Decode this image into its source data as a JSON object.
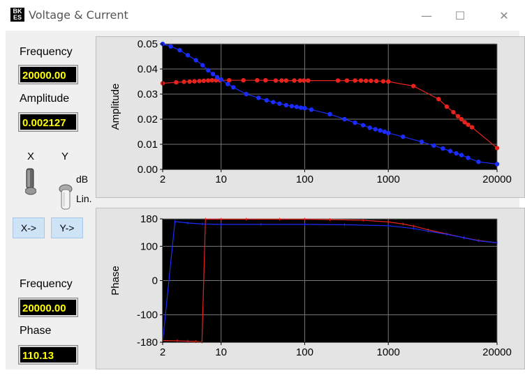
{
  "window": {
    "title": "Voltage & Current",
    "icon_text_top": "BK",
    "icon_text_bottom": "ES",
    "minimize_glyph": "—",
    "maximize_glyph": "☐",
    "close_glyph": "✕"
  },
  "left_panel": {
    "frequency_label": "Frequency",
    "frequency_value": "20000.00",
    "amplitude_label": "Amplitude",
    "amplitude_value": "0.002127",
    "x_label": "X",
    "y_label": "Y",
    "db_label": "dB",
    "lin_label": "Lin.",
    "x_button": "X->",
    "y_button": "Y->",
    "frequency2_label": "Frequency",
    "frequency2_value": "20000.00",
    "phase_label": "Phase",
    "phase_value": "110.13"
  },
  "colors": {
    "plot_bg": "#000000",
    "series_red": "#e8231d",
    "series_blue": "#1a2cff",
    "readout_text": "#ffff00",
    "button_bg": "#cfe3f7"
  },
  "chart_data": [
    {
      "type": "line",
      "ylabel": "Amplitude",
      "xscale": "log",
      "xlim": [
        2,
        20000
      ],
      "ylim": [
        0,
        0.05
      ],
      "grid": true,
      "x_ticks": [
        "2",
        "10",
        "100",
        "1000",
        "20000"
      ],
      "x_tick_values": [
        2,
        10,
        100,
        1000,
        20000
      ],
      "y_ticks": [
        "0.00",
        "0.01",
        "0.02",
        "0.03",
        "0.04",
        "0.05"
      ],
      "y_tick_values": [
        0,
        0.01,
        0.02,
        0.03,
        0.04,
        0.05
      ],
      "series": [
        {
          "color": "#e8231d",
          "markers": true,
          "x": [
            2,
            2.9,
            3.6,
            4.2,
            4.8,
            5.5,
            6.2,
            7,
            7.8,
            8.7,
            9.7,
            12.5,
            18.5,
            27,
            34,
            45,
            53,
            60,
            75,
            88,
            98,
            110,
            250,
            320,
            400,
            470,
            540,
            620,
            720,
            870,
            1000,
            2000,
            4000,
            5000,
            6000,
            6800,
            7500,
            8200,
            9000,
            10000,
            20000
          ],
          "values": [
            0.0343,
            0.0347,
            0.0349,
            0.035,
            0.0351,
            0.0352,
            0.0353,
            0.0354,
            0.0355,
            0.0355,
            0.0355,
            0.0355,
            0.0355,
            0.0355,
            0.0355,
            0.0354,
            0.0354,
            0.0354,
            0.0354,
            0.0354,
            0.0354,
            0.0354,
            0.0354,
            0.0354,
            0.0354,
            0.0354,
            0.0353,
            0.0353,
            0.0352,
            0.0351,
            0.035,
            0.0332,
            0.028,
            0.025,
            0.0228,
            0.0212,
            0.02,
            0.0188,
            0.0178,
            0.0168,
            0.0085
          ]
        },
        {
          "color": "#1a2cff",
          "markers": true,
          "x": [
            2,
            2.5,
            3.2,
            4,
            5,
            6,
            7,
            8,
            9,
            10,
            12,
            14,
            20,
            28,
            35,
            42,
            50,
            60,
            70,
            80,
            90,
            100,
            120,
            200,
            300,
            400,
            500,
            600,
            700,
            800,
            900,
            1000,
            1500,
            2500,
            3500,
            4500,
            5500,
            6500,
            7500,
            9000,
            12000,
            20000
          ],
          "values": [
            0.05,
            0.049,
            0.0475,
            0.0455,
            0.0435,
            0.0415,
            0.0395,
            0.038,
            0.0367,
            0.0358,
            0.034,
            0.0327,
            0.03,
            0.0285,
            0.0275,
            0.0268,
            0.0262,
            0.0256,
            0.0252,
            0.0249,
            0.0246,
            0.0244,
            0.0238,
            0.022,
            0.02,
            0.0186,
            0.0176,
            0.0166,
            0.016,
            0.0155,
            0.015,
            0.0145,
            0.013,
            0.011,
            0.0095,
            0.0083,
            0.0073,
            0.0064,
            0.0057,
            0.0046,
            0.003,
            0.0021
          ]
        }
      ]
    },
    {
      "type": "line",
      "ylabel": "Phase",
      "xscale": "log",
      "xlim": [
        2,
        20000
      ],
      "ylim": [
        -180,
        180
      ],
      "grid": true,
      "x_ticks": [
        "2",
        "10",
        "100",
        "1000",
        "20000"
      ],
      "x_tick_values": [
        2,
        10,
        100,
        1000,
        20000
      ],
      "y_ticks": [
        "-180",
        "-100",
        "0",
        "100",
        "180"
      ],
      "y_tick_values": [
        -180,
        -100,
        0,
        100,
        180
      ],
      "series": [
        {
          "color": "#e8231d",
          "markers": false,
          "x": [
            2,
            3,
            4,
            5,
            5.9,
            6.5,
            10,
            20,
            50,
            100,
            200,
            500,
            1000,
            1500,
            2000,
            3000,
            5000,
            8000,
            12000,
            20000
          ],
          "values": [
            -175,
            -176,
            -177,
            -178,
            -179,
            179,
            179,
            179,
            179,
            179,
            178,
            176,
            171,
            165,
            159,
            148,
            136,
            125,
            117,
            110
          ]
        },
        {
          "color": "#1a2cff",
          "markers": false,
          "x": [
            2,
            2.8,
            4,
            6,
            10,
            30,
            100,
            300,
            1000,
            2000,
            3000,
            5000,
            8000,
            12000,
            20000
          ],
          "values": [
            -180,
            172,
            168,
            165,
            164,
            164,
            164,
            163,
            160,
            152,
            144,
            135,
            125,
            116,
            110
          ]
        }
      ]
    }
  ]
}
